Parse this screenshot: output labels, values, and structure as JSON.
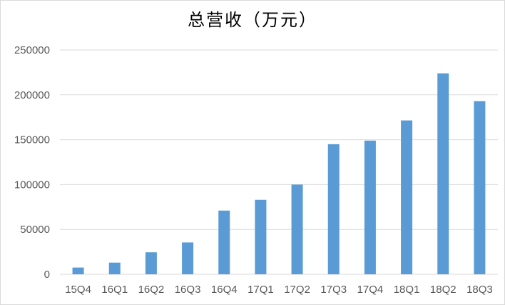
{
  "chart_data": {
    "type": "bar",
    "title": "总营收（万元）",
    "categories": [
      "15Q4",
      "16Q1",
      "16Q2",
      "16Q3",
      "16Q4",
      "17Q1",
      "17Q2",
      "17Q3",
      "17Q4",
      "18Q1",
      "18Q2",
      "18Q3"
    ],
    "values": [
      7500,
      13000,
      24500,
      35500,
      71000,
      83000,
      100000,
      145000,
      149000,
      171500,
      224000,
      193000
    ],
    "ylim": [
      0,
      250000
    ],
    "yticks": [
      0,
      50000,
      100000,
      150000,
      200000,
      250000
    ],
    "ytick_labels": [
      "0",
      "50000",
      "100000",
      "150000",
      "200000",
      "250000"
    ],
    "grid": true,
    "legend": "none",
    "bar_color": "#5b9bd5"
  }
}
